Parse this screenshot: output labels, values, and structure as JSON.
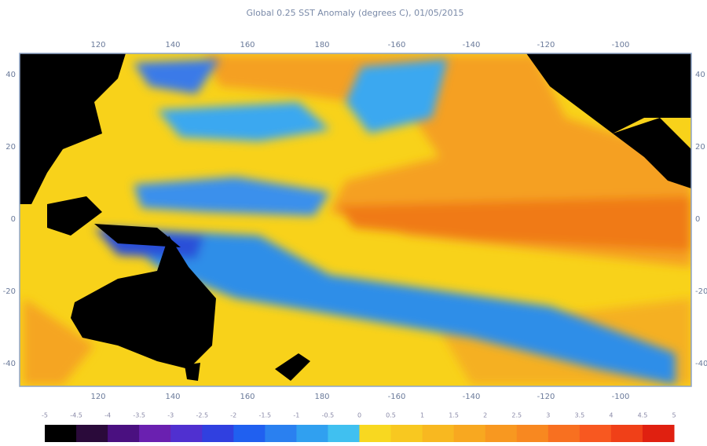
{
  "title": "Global 0.25 SST Anomaly (degrees C), 01/05/2015",
  "top_axis": [
    "120",
    "140",
    "160",
    "180",
    "-160",
    "-140",
    "-120",
    "-100"
  ],
  "bottom_axis": [
    "120",
    "140",
    "160",
    "180",
    "-160",
    "-140",
    "-120",
    "-100"
  ],
  "left_axis": [
    "40",
    "20",
    "0",
    "-20",
    "-40"
  ],
  "right_axis": [
    "40",
    "20",
    "0",
    "-20",
    "-40"
  ],
  "colorbar_labels": [
    "-5",
    "-4.5",
    "-4",
    "-3.5",
    "-3",
    "-2.5",
    "-2",
    "-1.5",
    "-1",
    "-0.5",
    "0",
    "0.5",
    "1",
    "1.5",
    "2",
    "2.5",
    "3",
    "3.5",
    "4",
    "4.5",
    "5"
  ]
}
